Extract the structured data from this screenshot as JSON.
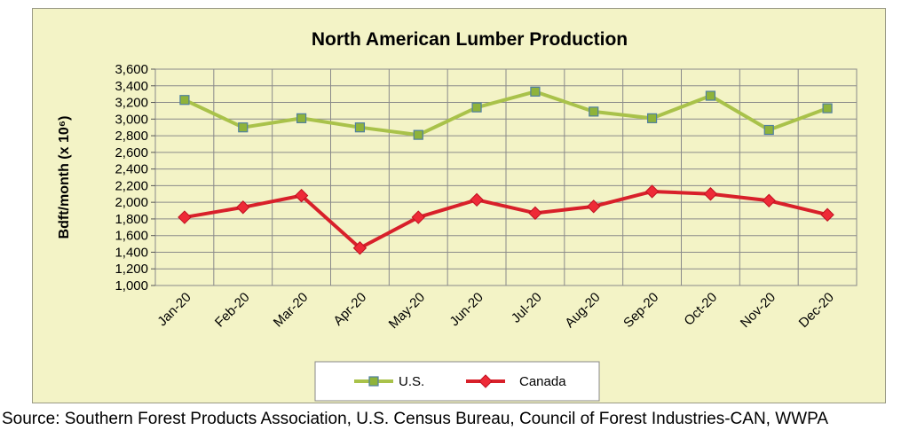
{
  "chart_data": {
    "type": "line",
    "title": "North American Lumber Production",
    "ylabel": "Bdft/month (x 10⁶)",
    "xlabel": "",
    "categories": [
      "Jan-20",
      "Feb-20",
      "Mar-20",
      "Apr-20",
      "May-20",
      "Jun-20",
      "Jul-20",
      "Aug-20",
      "Sep-20",
      "Oct-20",
      "Nov-20",
      "Dec-20"
    ],
    "ylim": [
      1000,
      3600
    ],
    "yticks": [
      1000,
      1200,
      1400,
      1600,
      1800,
      2000,
      2200,
      2400,
      2600,
      2800,
      3000,
      3200,
      3400,
      3600
    ],
    "grid": true,
    "legend_position": "bottom",
    "series": [
      {
        "name": "U.S.",
        "color": "#a9c24a",
        "marker": "square",
        "marker_color": "#8fb33a",
        "values": [
          3230,
          2900,
          3010,
          2900,
          2810,
          3140,
          3330,
          3090,
          3010,
          3280,
          2870,
          3130
        ]
      },
      {
        "name": "Canada",
        "color": "#d8202a",
        "marker": "diamond",
        "marker_color": "#ee2a37",
        "values": [
          1820,
          1940,
          2080,
          1450,
          1820,
          2030,
          1870,
          1950,
          2130,
          2100,
          2020,
          1850
        ]
      }
    ]
  },
  "source": "Source: Southern Forest Products Association, U.S. Census Bureau, Council of Forest Industries-CAN, WWPA"
}
